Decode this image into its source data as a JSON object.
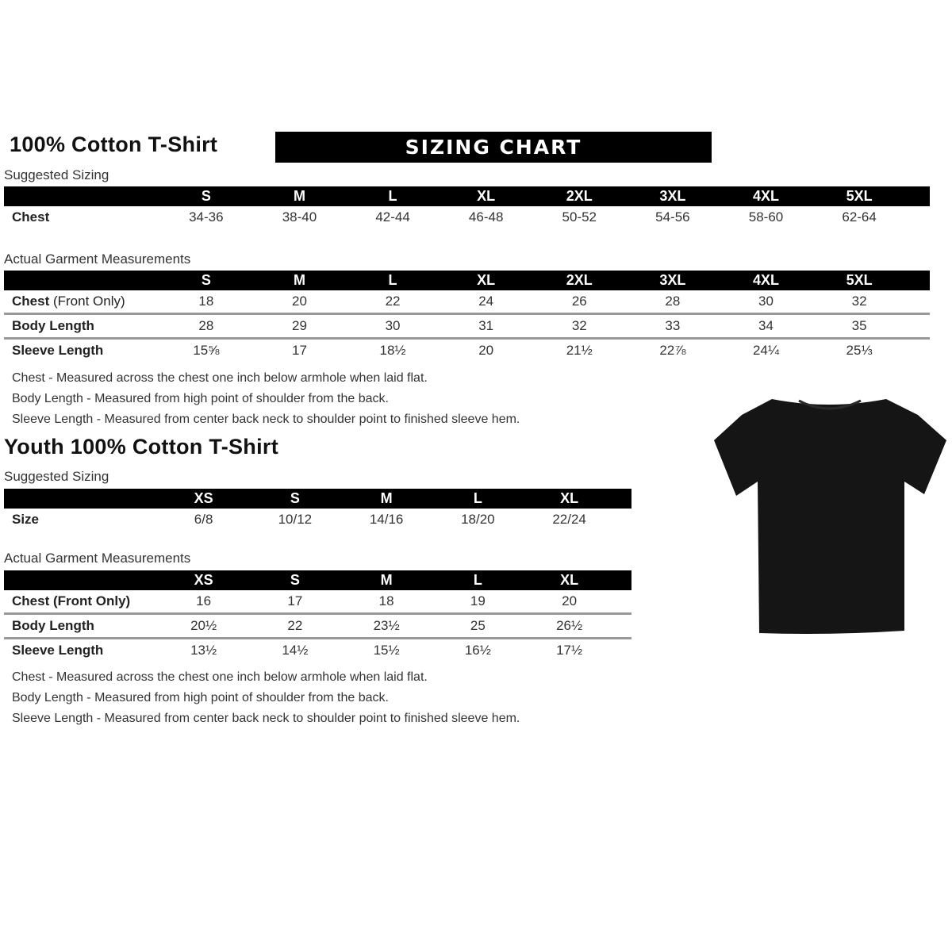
{
  "adult": {
    "title": "100% Cotton T-Shirt",
    "banner": "SIZING CHART",
    "suggested_label": "Suggested Sizing",
    "sizes": [
      "S",
      "M",
      "L",
      "XL",
      "2XL",
      "3XL",
      "4XL",
      "5XL"
    ],
    "suggested_row": {
      "label": "Chest",
      "values": [
        "34-36",
        "38-40",
        "42-44",
        "46-48",
        "50-52",
        "54-56",
        "58-60",
        "62-64"
      ]
    },
    "actual_label": "Actual Garment Measurements",
    "actual_rows": [
      {
        "label": "Chest",
        "label_suffix": " (Front Only)",
        "values": [
          "18",
          "20",
          "22",
          "24",
          "26",
          "28",
          "30",
          "32"
        ]
      },
      {
        "label": "Body Length",
        "label_suffix": "",
        "values": [
          "28",
          "29",
          "30",
          "31",
          "32",
          "33",
          "34",
          "35"
        ]
      },
      {
        "label": "Sleeve Length",
        "label_suffix": "",
        "values": [
          "15⅝",
          "17",
          "18½",
          "20",
          "21½",
          "22⅞",
          "24¼",
          "25⅓"
        ]
      }
    ],
    "notes": [
      "Chest - Measured across the chest one inch below armhole when laid flat.",
      "Body Length - Measured from high point of shoulder from the back.",
      "Sleeve Length - Measured from center back neck to shoulder point to finished sleeve hem."
    ]
  },
  "youth": {
    "title": "Youth 100% Cotton T-Shirt",
    "suggested_label": "Suggested Sizing",
    "sizes": [
      "XS",
      "S",
      "M",
      "L",
      "XL"
    ],
    "suggested_row": {
      "label": "Size",
      "values": [
        "6/8",
        "10/12",
        "14/16",
        "18/20",
        "22/24"
      ]
    },
    "actual_label": "Actual Garment Measurements",
    "actual_rows": [
      {
        "label": "Chest (Front Only)",
        "values": [
          "16",
          "17",
          "18",
          "19",
          "20"
        ]
      },
      {
        "label": "Body Length",
        "values": [
          "20½",
          "22",
          "23½",
          "25",
          "26½"
        ]
      },
      {
        "label": "Sleeve Length",
        "values": [
          "13½",
          "14½",
          "15½",
          "16½",
          "17½"
        ]
      }
    ],
    "notes": [
      "Chest - Measured across the chest one inch below armhole when laid flat.",
      "Body Length - Measured from high point of shoulder from the back.",
      "Sleeve Length - Measured from center back neck to shoulder point to finished sleeve hem."
    ]
  },
  "image": {
    "tshirt_color": "#151515"
  }
}
